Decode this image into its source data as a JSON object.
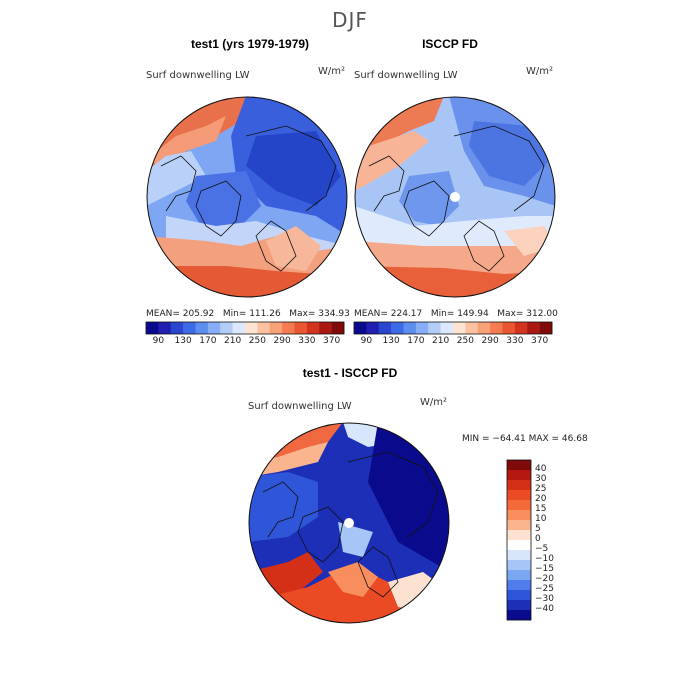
{
  "figure": {
    "season": "DJF"
  },
  "panels": [
    {
      "title": "test1 (yrs 1979-1979)",
      "variable": "Surf downwelling LW",
      "units": "W/m²",
      "mean_label": "MEAN= 205.92",
      "min_label": "Min= 111.26",
      "max_label": "Max= 334.93"
    },
    {
      "title": "ISCCP FD",
      "variable": "Surf downwelling LW",
      "units": "W/m²",
      "mean_label": "MEAN= 224.17",
      "min_label": "Min= 149.94",
      "max_label": "Max= 312.00"
    }
  ],
  "diff_panel": {
    "title": "test1 - ISCCP FD",
    "variable": "Surf downwelling LW",
    "units": "W/m²",
    "minmax_label": "MIN = −64.41 MAX =  46.68"
  },
  "colorbar_h": {
    "ticks": [
      "90",
      "130",
      "170",
      "210",
      "250",
      "290",
      "330",
      "370"
    ],
    "colors": [
      "#0a0a8c",
      "#1f1fb0",
      "#2a45cf",
      "#3d6ae6",
      "#5c8ef0",
      "#86adf5",
      "#b3cdf9",
      "#dce8fc",
      "#fde4d2",
      "#fbc3a2",
      "#f8a176",
      "#f47c50",
      "#ea5630",
      "#d43220",
      "#ac1613",
      "#7f0a0a"
    ]
  },
  "colorbar_v": {
    "labels": [
      "40",
      "30",
      "25",
      "20",
      "15",
      "10",
      "5",
      "0",
      "−5",
      "−10",
      "−15",
      "−20",
      "−25",
      "−30",
      "−40"
    ],
    "colors": [
      "#7f0a0a",
      "#b3170f",
      "#d43018",
      "#ea4a24",
      "#f46a38",
      "#f88e5e",
      "#fbb58e",
      "#fde2d2",
      "#ffffff",
      "#d7e6fb",
      "#a7c6f7",
      "#7aa6f2",
      "#4f7deb",
      "#2f55d8",
      "#1c2fb6",
      "#0a0a8c"
    ]
  },
  "colors": {
    "ocean_warm": "#e8573a",
    "cold": "#2b4fd0",
    "coast": "#111111"
  }
}
